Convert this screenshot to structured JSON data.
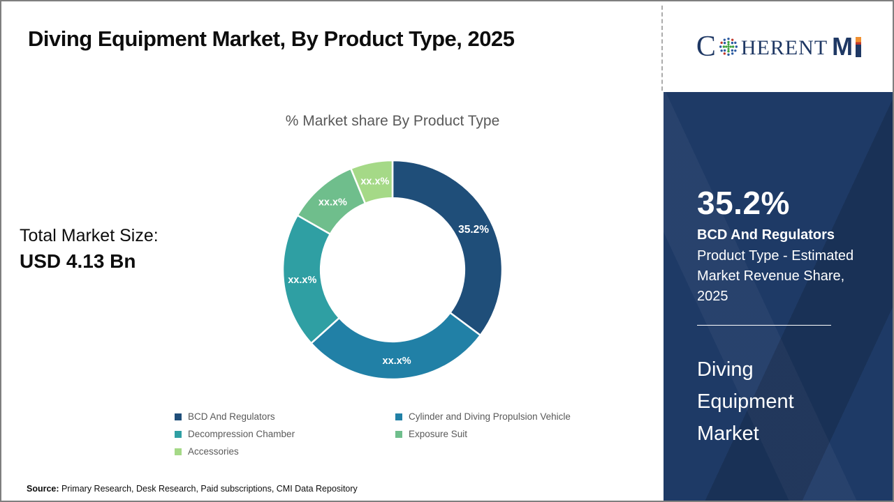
{
  "header": {
    "title": "Diving Equipment Market, By Product Type, 2025"
  },
  "logo": {
    "prefix": "C",
    "mid": "HERENT",
    "m": "M",
    "globe_icon": "dotted-globe",
    "i_bar_colors": [
      "#f09031",
      "#c0392b",
      "#1f3864"
    ]
  },
  "chart": {
    "title": "% Market share By Product Type"
  },
  "chart_data": {
    "type": "pie",
    "subtype": "donut",
    "title": "% Market share By Product Type",
    "categories": [
      "BCD And Regulators",
      "Cylinder and Diving Propulsion Vehicle",
      "Decompression Chamber",
      "Exposure Suit",
      "Accessories"
    ],
    "values": [
      35.2,
      28.1,
      20.0,
      10.5,
      6.2
    ],
    "slice_labels": [
      "35.2%",
      "xx.x%",
      "xx.x%",
      "xx.x%",
      "xx.x%"
    ],
    "colors": [
      "#1f4e79",
      "#2180a6",
      "#2f9fa3",
      "#6fbe8c",
      "#a5d987"
    ],
    "start_angle_deg": 0,
    "donut_hole_ratio": 0.655,
    "legend_position": "bottom",
    "note": "only the first slice value (35.2%) is disclosed; remaining slices are masked as xx.x%"
  },
  "left_panel": {
    "label": "Total Market Size:",
    "value": "USD 4.13 Bn"
  },
  "sidebar": {
    "stat": "35.2%",
    "stat_title": "BCD And Regulators",
    "stat_desc": "Product Type - Estimated Market Revenue Share, 2025",
    "market_name": "Diving Equipment Market",
    "background_color": "#1e3a66"
  },
  "footer": {
    "source_label": "Source:",
    "source_text": " Primary Research, Desk Research, Paid subscriptions, CMI Data Repository"
  }
}
